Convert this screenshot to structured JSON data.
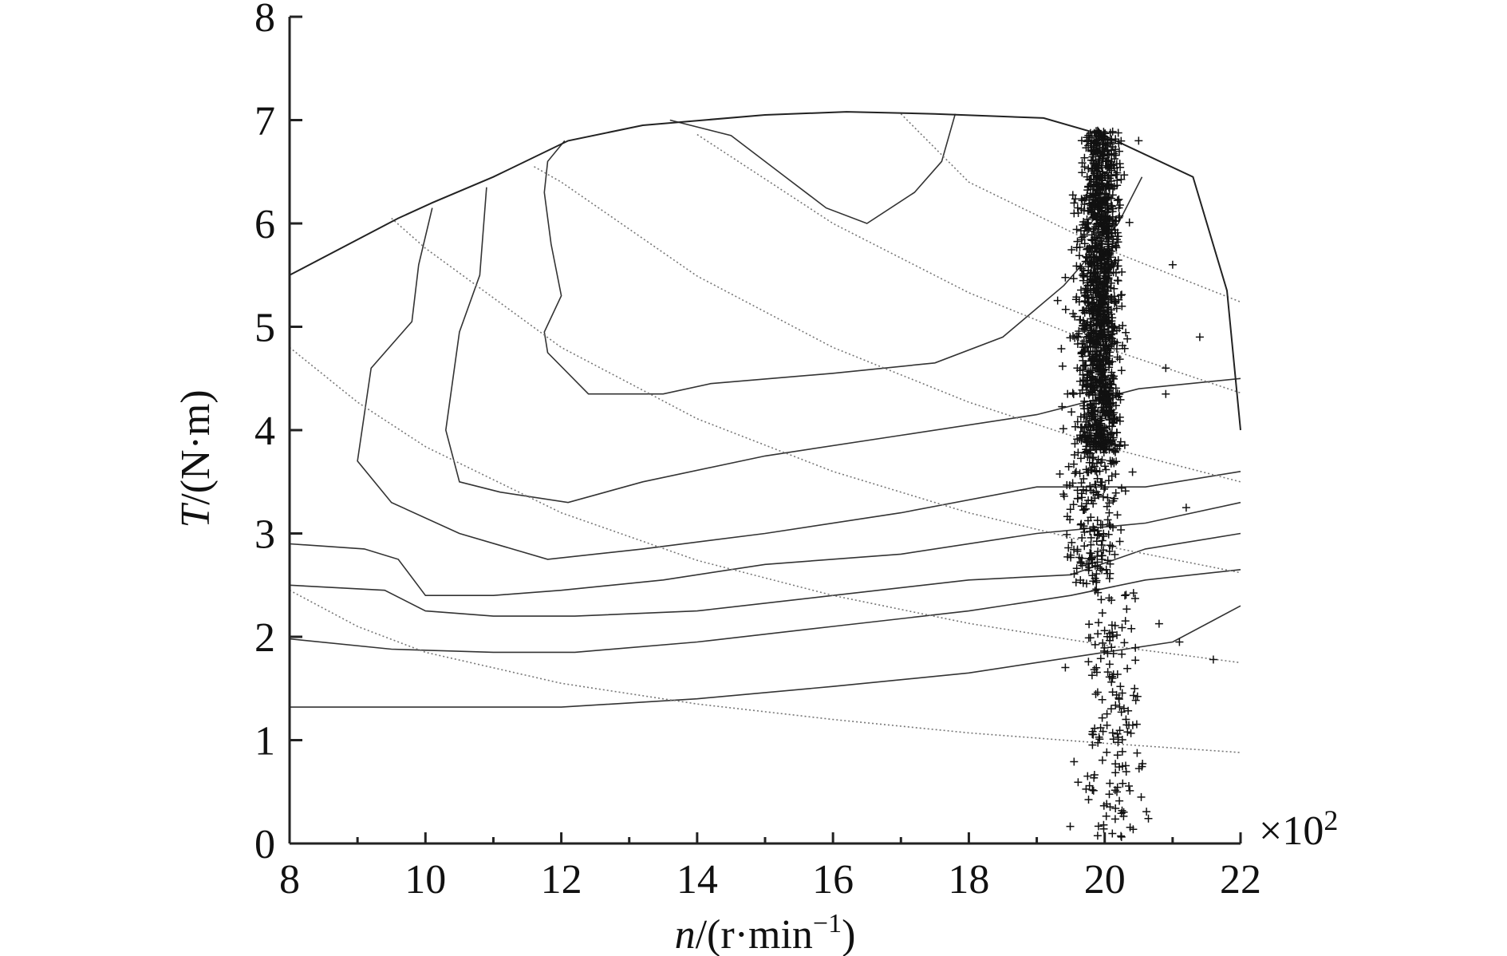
{
  "chart_data": {
    "type": "scatter",
    "title": "",
    "xlabel": {
      "symbol": "n",
      "unit": "/(r·min",
      "exp": "−1",
      "close": ")"
    },
    "ylabel": {
      "symbol": "T",
      "unit": "/(N·m)"
    },
    "x_multiplier": {
      "prefix": "×10",
      "exp": "2"
    },
    "xlim": [
      8,
      22
    ],
    "ylim": [
      0,
      8
    ],
    "x_ticks": [
      "8",
      "10",
      "12",
      "14",
      "16",
      "18",
      "20",
      "22"
    ],
    "y_ticks": [
      "0",
      "1",
      "2",
      "3",
      "4",
      "5",
      "6",
      "7",
      "8"
    ],
    "grid": false,
    "legend": "none",
    "max_torque_envelope": [
      [
        8,
        5.5
      ],
      [
        9.6,
        6.05
      ],
      [
        10.1,
        6.2
      ],
      [
        11,
        6.45
      ],
      [
        12.1,
        6.8
      ],
      [
        13.2,
        6.95
      ],
      [
        15,
        7.05
      ],
      [
        16.2,
        7.08
      ],
      [
        17.5,
        7.06
      ],
      [
        19.1,
        7.02
      ],
      [
        20,
        6.85
      ],
      [
        21.3,
        6.45
      ],
      [
        21.8,
        5.35
      ],
      [
        22,
        4.0
      ]
    ],
    "efficiency_contours": [
      {
        "style": "solid",
        "points": [
          [
            13.6,
            7.0
          ],
          [
            14.5,
            6.85
          ],
          [
            15.3,
            6.45
          ],
          [
            15.9,
            6.15
          ],
          [
            16.5,
            6.0
          ],
          [
            17.2,
            6.3
          ],
          [
            17.6,
            6.6
          ],
          [
            17.8,
            7.06
          ]
        ]
      },
      {
        "style": "solid",
        "points": [
          [
            12.05,
            6.8
          ],
          [
            11.8,
            6.6
          ],
          [
            11.75,
            6.3
          ],
          [
            11.85,
            5.8
          ],
          [
            12.0,
            5.3
          ],
          [
            11.75,
            4.95
          ],
          [
            11.8,
            4.75
          ],
          [
            12.4,
            4.35
          ],
          [
            13.5,
            4.35
          ],
          [
            14.2,
            4.45
          ],
          [
            16.0,
            4.55
          ],
          [
            17.5,
            4.65
          ],
          [
            18.5,
            4.9
          ],
          [
            19.4,
            5.4
          ],
          [
            20.2,
            6.0
          ],
          [
            20.55,
            6.45
          ]
        ]
      },
      {
        "style": "solid",
        "points": [
          [
            10.9,
            6.35
          ],
          [
            10.8,
            5.5
          ],
          [
            10.5,
            4.95
          ],
          [
            10.3,
            4.0
          ],
          [
            10.5,
            3.5
          ],
          [
            11.1,
            3.4
          ],
          [
            12.1,
            3.3
          ],
          [
            13.2,
            3.5
          ],
          [
            15.0,
            3.75
          ],
          [
            17.0,
            3.95
          ],
          [
            19.0,
            4.15
          ],
          [
            20.5,
            4.4
          ],
          [
            22.0,
            4.5
          ]
        ]
      },
      {
        "style": "solid",
        "points": [
          [
            10.1,
            6.15
          ],
          [
            9.9,
            5.6
          ],
          [
            9.8,
            5.05
          ],
          [
            9.2,
            4.6
          ],
          [
            9.0,
            3.7
          ],
          [
            9.5,
            3.3
          ],
          [
            10.5,
            3.0
          ],
          [
            11.8,
            2.75
          ],
          [
            13.2,
            2.85
          ],
          [
            15.0,
            3.0
          ],
          [
            17.0,
            3.2
          ],
          [
            19.0,
            3.45
          ],
          [
            20.6,
            3.45
          ],
          [
            22.0,
            3.6
          ]
        ]
      },
      {
        "style": "solid",
        "points": [
          [
            8.0,
            2.9
          ],
          [
            9.1,
            2.85
          ],
          [
            9.6,
            2.75
          ],
          [
            10.0,
            2.4
          ],
          [
            11.0,
            2.4
          ],
          [
            12.0,
            2.45
          ],
          [
            13.5,
            2.55
          ],
          [
            15.0,
            2.7
          ],
          [
            17.0,
            2.8
          ],
          [
            19.0,
            3.0
          ],
          [
            20.6,
            3.1
          ],
          [
            22.0,
            3.3
          ]
        ]
      },
      {
        "style": "solid",
        "points": [
          [
            8.0,
            2.5
          ],
          [
            9.4,
            2.45
          ],
          [
            10.0,
            2.25
          ],
          [
            11.0,
            2.2
          ],
          [
            12.2,
            2.2
          ],
          [
            14.0,
            2.25
          ],
          [
            16.0,
            2.4
          ],
          [
            18.0,
            2.55
          ],
          [
            19.5,
            2.6
          ],
          [
            20.6,
            2.85
          ],
          [
            22.0,
            3.0
          ]
        ]
      },
      {
        "style": "solid",
        "points": [
          [
            8.0,
            1.98
          ],
          [
            9.5,
            1.88
          ],
          [
            11.0,
            1.85
          ],
          [
            12.2,
            1.85
          ],
          [
            14.0,
            1.95
          ],
          [
            16.0,
            2.1
          ],
          [
            18.0,
            2.25
          ],
          [
            19.5,
            2.4
          ],
          [
            20.6,
            2.55
          ],
          [
            22.0,
            2.65
          ]
        ]
      },
      {
        "style": "solid",
        "points": [
          [
            8.0,
            1.32
          ],
          [
            10.0,
            1.32
          ],
          [
            12.0,
            1.32
          ],
          [
            14.0,
            1.4
          ],
          [
            16.0,
            1.52
          ],
          [
            18.0,
            1.65
          ],
          [
            20.0,
            1.85
          ],
          [
            21.0,
            1.95
          ],
          [
            22.0,
            2.3
          ]
        ]
      }
    ],
    "power_hyperbolas": [
      {
        "style": "dotted",
        "points": [
          [
            8.0,
            2.45
          ],
          [
            9.0,
            2.1
          ],
          [
            10.0,
            1.85
          ],
          [
            12.0,
            1.55
          ],
          [
            14.0,
            1.35
          ],
          [
            16.0,
            1.2
          ],
          [
            18.0,
            1.07
          ],
          [
            20.0,
            0.97
          ],
          [
            22.0,
            0.88
          ]
        ]
      },
      {
        "style": "dotted",
        "points": [
          [
            8.0,
            4.8
          ],
          [
            9.0,
            4.27
          ],
          [
            10.0,
            3.84
          ],
          [
            12.0,
            3.2
          ],
          [
            14.0,
            2.74
          ],
          [
            16.0,
            2.4
          ],
          [
            18.0,
            2.13
          ],
          [
            20.0,
            1.92
          ],
          [
            22.0,
            1.75
          ]
        ]
      },
      {
        "style": "dotted",
        "points": [
          [
            9.5,
            6.05
          ],
          [
            10.0,
            5.76
          ],
          [
            12.0,
            4.8
          ],
          [
            14.0,
            4.11
          ],
          [
            16.0,
            3.6
          ],
          [
            18.0,
            3.2
          ],
          [
            20.0,
            2.88
          ],
          [
            22.0,
            2.62
          ]
        ]
      },
      {
        "style": "dotted",
        "points": [
          [
            11.6,
            6.55
          ],
          [
            12.0,
            6.4
          ],
          [
            14.0,
            5.49
          ],
          [
            16.0,
            4.8
          ],
          [
            18.0,
            4.27
          ],
          [
            20.0,
            3.84
          ],
          [
            22.0,
            3.5
          ]
        ]
      },
      {
        "style": "dotted",
        "points": [
          [
            14.0,
            6.86
          ],
          [
            16.0,
            6.0
          ],
          [
            18.0,
            5.33
          ],
          [
            20.0,
            4.8
          ],
          [
            22.0,
            4.36
          ]
        ]
      },
      {
        "style": "dotted",
        "points": [
          [
            17.0,
            7.06
          ],
          [
            18.0,
            6.4
          ],
          [
            20.0,
            5.76
          ],
          [
            22.0,
            5.24
          ]
        ]
      }
    ],
    "scatter_cluster": {
      "marker": "+",
      "dense_core": {
        "x_center": 19.95,
        "x_spread": 0.28,
        "y_range": [
          3.8,
          6.9
        ]
      },
      "upper_band": {
        "x_center": 19.85,
        "x_spread": 0.45,
        "y_range": [
          2.5,
          6.3
        ]
      },
      "lower_tail": {
        "x_center": 20.1,
        "x_spread": 0.55,
        "y_range": [
          0.0,
          2.5
        ]
      },
      "outliers": [
        [
          21.4,
          4.9
        ],
        [
          21.6,
          1.78
        ],
        [
          21.1,
          1.95
        ],
        [
          20.9,
          4.6
        ],
        [
          21.0,
          5.6
        ],
        [
          20.5,
          6.8
        ],
        [
          21.2,
          3.25
        ],
        [
          20.9,
          4.35
        ]
      ]
    }
  }
}
